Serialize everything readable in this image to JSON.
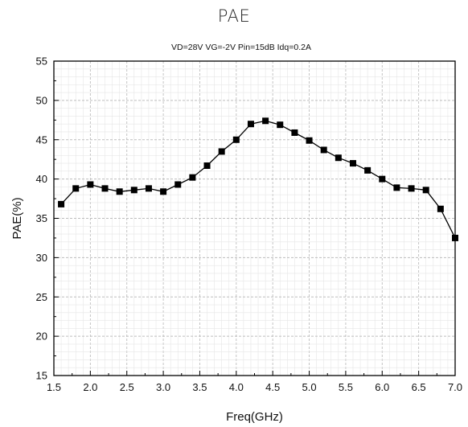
{
  "page": {
    "title": "PAE"
  },
  "chart_data": {
    "type": "line",
    "title": "PAE",
    "subtitle": "VD=28V  VG=-2V  Pin=15dB  Idq=0.2A",
    "xlabel": "Freq(GHz)",
    "ylabel": "PAE(%)",
    "xlim": [
      1.5,
      7.0
    ],
    "ylim": [
      15,
      55
    ],
    "xticks": [
      "1.5",
      "2.0",
      "2.5",
      "3.0",
      "3.5",
      "4.0",
      "4.5",
      "5.0",
      "5.5",
      "6.0",
      "6.5",
      "7.0"
    ],
    "yticks": [
      "15",
      "20",
      "25",
      "30",
      "35",
      "40",
      "45",
      "50",
      "55"
    ],
    "grid": true,
    "marker": "square",
    "line_color": "#000000",
    "series": [
      {
        "x": [
          1.6,
          1.8,
          2.0,
          2.2,
          2.4,
          2.6,
          2.8,
          3.0,
          3.2,
          3.4,
          3.6,
          3.8,
          4.0,
          4.2,
          4.4,
          4.6,
          4.8,
          5.0,
          5.2,
          5.4,
          5.6,
          5.8,
          6.0,
          6.2,
          6.4,
          6.6,
          6.8,
          7.0
        ],
        "values": [
          36.8,
          38.8,
          39.3,
          38.8,
          38.4,
          38.6,
          38.8,
          38.4,
          39.3,
          40.2,
          41.7,
          43.5,
          45.0,
          47.0,
          47.4,
          46.9,
          45.9,
          44.9,
          43.7,
          42.7,
          42.0,
          41.1,
          40.0,
          38.9,
          38.8,
          38.6,
          36.2,
          32.5
        ]
      }
    ]
  }
}
